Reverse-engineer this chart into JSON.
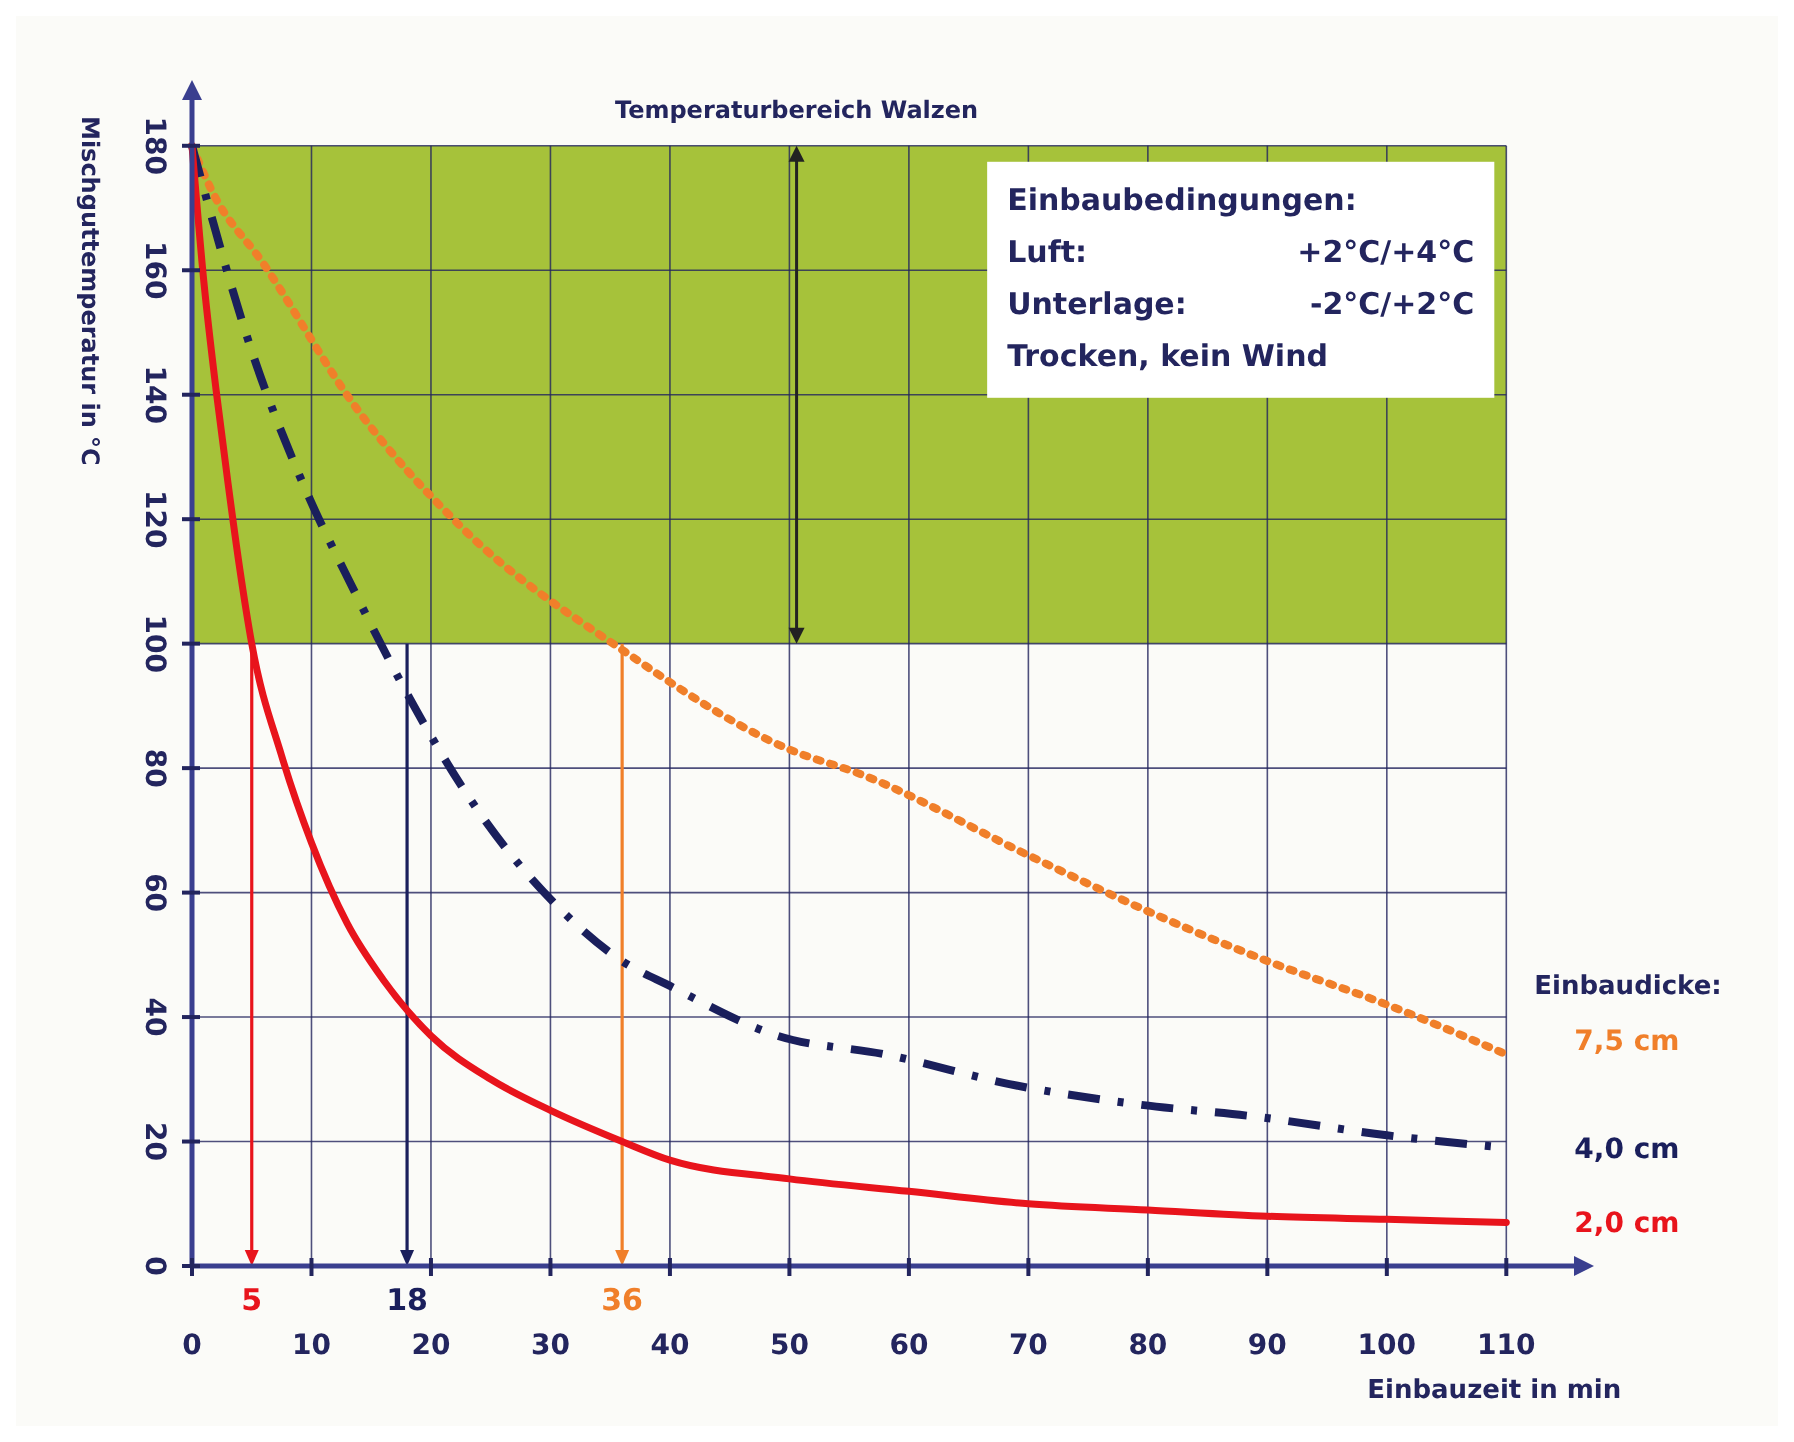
{
  "chart_data": {
    "type": "line",
    "xlabel": "Einbauzeit in min",
    "ylabel": "Mischguttemperatur in °C",
    "legend_title": "Einbaudicke:",
    "xlim": [
      0,
      116
    ],
    "ylim": [
      0,
      188
    ],
    "xticks": [
      0,
      10,
      20,
      30,
      40,
      50,
      60,
      70,
      80,
      90,
      100,
      110
    ],
    "yticks": [
      0,
      20,
      40,
      60,
      80,
      100,
      120,
      140,
      160,
      180
    ],
    "grid": true,
    "legend": "right",
    "marker": "none",
    "series": [
      {
        "name": "7,5 cm",
        "color": "#f07f2a",
        "line_style": "dotted",
        "x": [
          0,
          1.6,
          6,
          13.7,
          22.4,
          36,
          50,
          56,
          70,
          80,
          90,
          100,
          110
        ],
        "values": [
          180,
          173,
          161,
          138,
          119,
          99,
          83,
          79,
          66,
          57,
          49,
          42,
          34
        ]
      },
      {
        "name": "4,0 cm",
        "color": "#1a1f5c",
        "line_style": "dashed",
        "x": [
          0,
          1,
          5,
          9,
          13.7,
          16.6,
          24,
          31,
          36,
          40,
          49,
          58,
          69,
          79,
          89,
          100,
          110
        ],
        "values": [
          180,
          173,
          147,
          127,
          108,
          97,
          73,
          57,
          49,
          45,
          37,
          34,
          29,
          26,
          24,
          21,
          19
        ]
      },
      {
        "name": "2,0 cm",
        "color": "#e8141c",
        "line_style": "solid",
        "x": [
          0,
          1,
          2,
          3,
          4,
          5,
          7.5,
          10,
          13,
          16,
          20,
          25,
          30,
          36,
          40,
          50,
          60,
          70,
          80,
          90,
          100,
          110
        ],
        "values": [
          180,
          158,
          141,
          126,
          112,
          100,
          82,
          68,
          55,
          46,
          37,
          30,
          25,
          20,
          17,
          14,
          12,
          10,
          9,
          8,
          7.5,
          7
        ]
      }
    ],
    "bands": [
      {
        "axis": "y",
        "from": 100,
        "to": 180,
        "label": "Temperaturbereich Walzen",
        "color": "#a6c23a"
      }
    ],
    "ref_lines": [
      {
        "axis": "x",
        "value": 5,
        "label": "5",
        "color": "#e8141c"
      },
      {
        "axis": "x",
        "value": 18,
        "label": "18",
        "color": "#1a1f5c"
      },
      {
        "axis": "x",
        "value": 36,
        "label": "36",
        "color": "#f07f2a"
      }
    ],
    "annotations": [
      "Einbaubedingungen:",
      "Luft:\t+2°C/+4°C",
      "Unterlage:\t-2°C/+2°C",
      "Trocken, kein Wind"
    ]
  }
}
